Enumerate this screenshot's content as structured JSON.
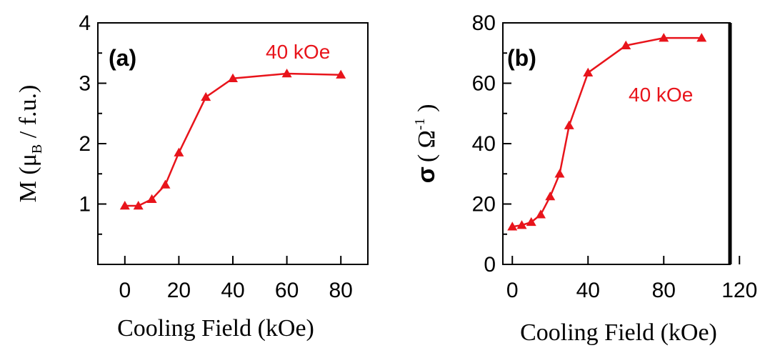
{
  "chart_data": [
    {
      "type": "line",
      "panel_label": "(a)",
      "annotation": "40 kOe",
      "xlabel": "Cooling Field (kOe)",
      "ylabel": {
        "main": "M (μ",
        "sub": "B",
        "rest": " / f.u.)"
      },
      "xlim": [
        -10,
        90
      ],
      "ylim": [
        0,
        4
      ],
      "xticks": [
        0,
        20,
        40,
        60,
        80
      ],
      "yticks": [
        1,
        2,
        3,
        4
      ],
      "color": "#e8141b",
      "marker": "triangle",
      "x": [
        0,
        5,
        10,
        15,
        20,
        30,
        40,
        60,
        80
      ],
      "y": [
        0.97,
        0.97,
        1.08,
        1.32,
        1.85,
        2.77,
        3.08,
        3.16,
        3.14
      ]
    },
    {
      "type": "line",
      "panel_label": "(b)",
      "annotation": "40 kOe",
      "xlabel": "Cooling Field (kOe)",
      "ylabel": {
        "main": "σ",
        "paren_open": "( Ω",
        "sup": "-1",
        "paren_close": " )"
      },
      "xlim": [
        -5,
        115
      ],
      "ylim": [
        0,
        80
      ],
      "xticks": [
        0,
        40,
        80,
        120
      ],
      "yticks": [
        0,
        20,
        40,
        60,
        80
      ],
      "color": "#e8141b",
      "marker": "triangle",
      "x": [
        0,
        5,
        10,
        15,
        20,
        25,
        30,
        40,
        60,
        80,
        100
      ],
      "y": [
        12.5,
        13,
        14,
        16.5,
        22.5,
        30,
        46,
        63.5,
        72.5,
        75,
        75
      ]
    }
  ]
}
